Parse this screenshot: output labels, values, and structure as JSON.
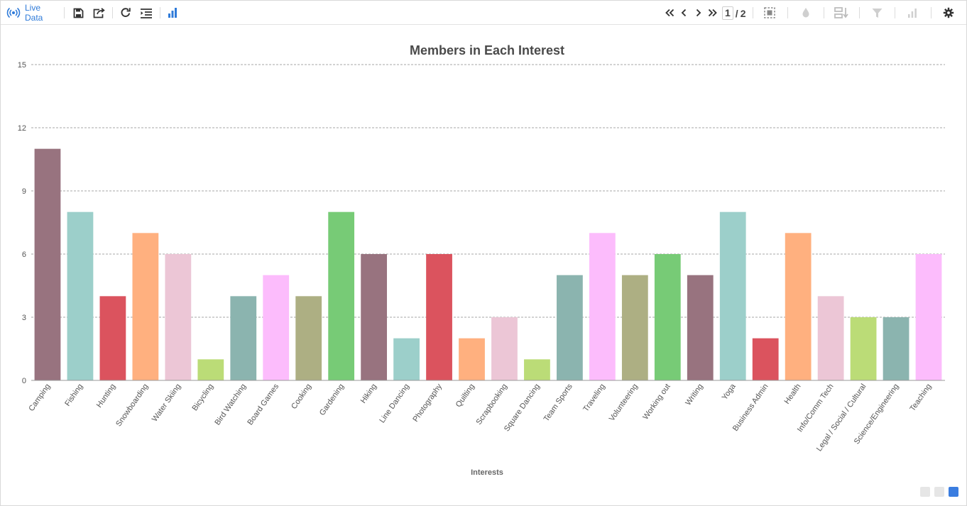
{
  "toolbar": {
    "live_label": "Live Data",
    "page_current": "1",
    "page_separator": "/",
    "page_total": "2",
    "accent_color": "#2f7bd9",
    "icons": [
      "live-data-icon",
      "save-icon",
      "export-icon",
      "refresh-icon",
      "sort-list-icon",
      "bar-chart-icon",
      "first-page-icon",
      "previous-page-icon",
      "next-page-icon",
      "last-page-icon",
      "select-icon",
      "color-drop-icon",
      "sort-desc-icon",
      "filter-icon",
      "stats-icon",
      "settings-icon"
    ]
  },
  "chart_data": {
    "type": "bar",
    "title": "Members in Each Interest",
    "xlabel": "Interests",
    "ylabel": "",
    "ylim": [
      0,
      15
    ],
    "yticks": [
      0,
      3,
      6,
      9,
      12,
      15
    ],
    "grid": true,
    "legend": "none",
    "categories": [
      "Camping",
      "Fishing",
      "Hunting",
      "Snowboarding",
      "Water Skiing",
      "Bicycling",
      "Bird Watching",
      "Board Games",
      "Cooking",
      "Gardening",
      "Hiking",
      "Line Dancing",
      "Photography",
      "Quilting",
      "Scrapbooking",
      "Square Dancing",
      "Team Sports",
      "Traveling",
      "Volunteering",
      "Working out",
      "Writing",
      "Yoga",
      "Business Admin",
      "Health",
      "Info/Comm Tech",
      "Legal / Social / Cultural",
      "Science/Engineering",
      "Teaching"
    ],
    "values": [
      11,
      8,
      4,
      7,
      6,
      1,
      4,
      5,
      4,
      8,
      6,
      2,
      6,
      2,
      3,
      1,
      5,
      7,
      5,
      6,
      5,
      8,
      2,
      7,
      4,
      3,
      3,
      6
    ],
    "colors": [
      "#98737f",
      "#9ccfca",
      "#db535e",
      "#ffb07f",
      "#ecc6d6",
      "#bbdc77",
      "#8bb4af",
      "#fcbcfc",
      "#adaf83",
      "#77cb76",
      "#98737f",
      "#9ccfca",
      "#db535e",
      "#ffb07f",
      "#ecc6d6",
      "#bbdc77",
      "#8bb4af",
      "#fcbcfc",
      "#adaf83",
      "#77cb76",
      "#98737f",
      "#9ccfca",
      "#db535e",
      "#ffb07f",
      "#ecc6d6",
      "#bbdc77",
      "#8bb4af",
      "#fcbcfc"
    ]
  },
  "view_switch": {
    "colors": [
      "#e6e6e6",
      "#e6e6e6",
      "#3a7de0"
    ]
  }
}
